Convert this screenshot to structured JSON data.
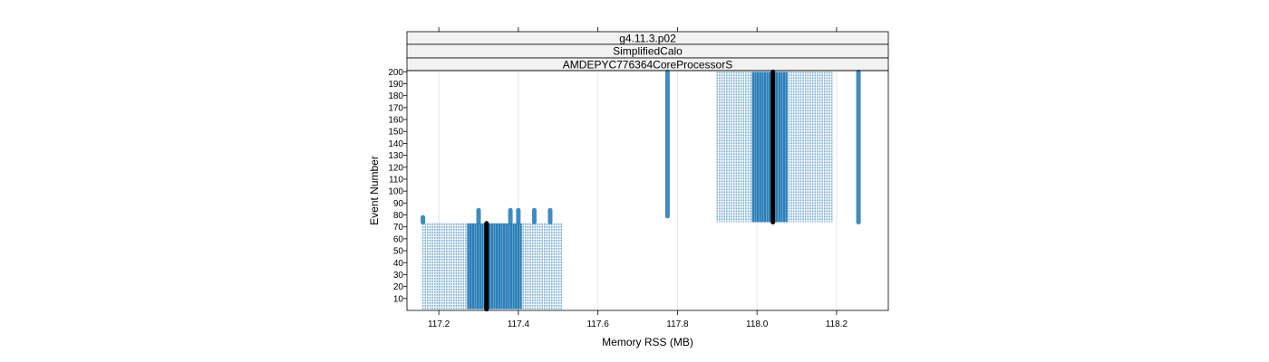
{
  "chart_data": {
    "type": "scatter",
    "panel_strips": [
      "g4.11.3.p02",
      "SimplifiedCalo",
      "AMDEPYC776364CoreProcessorS"
    ],
    "xlabel": "Memory RSS (MB)",
    "ylabel": "Event Number",
    "xlim": [
      117.12,
      118.33
    ],
    "ylim": [
      0,
      201
    ],
    "x_ticks": [
      117.2,
      117.4,
      117.6,
      117.8,
      118.0,
      118.2
    ],
    "x_tick_labels": [
      "117.2",
      "117.4",
      "117.6",
      "117.8",
      "118.0",
      "118.2"
    ],
    "y_ticks": [
      10,
      20,
      30,
      40,
      50,
      60,
      70,
      80,
      90,
      100,
      110,
      120,
      130,
      140,
      150,
      160,
      170,
      180,
      190,
      200
    ],
    "y_tick_labels": [
      "10",
      "20",
      "30",
      "40",
      "50",
      "60",
      "70",
      "80",
      "90",
      "100",
      "110",
      "120",
      "130",
      "140",
      "150",
      "160",
      "170",
      "180",
      "190",
      "200"
    ],
    "grid": true,
    "point_color": "#1f77b4",
    "median_color": "#000000",
    "groups": [
      {
        "events": [
          1,
          73
        ],
        "x_min": 117.16,
        "x_max": 117.51,
        "dense_min": 117.27,
        "dense_max": 117.41,
        "median_x": 117.32,
        "outlier_columns": [
          {
            "x": 117.16,
            "events": [
              74,
              78
            ]
          },
          {
            "x": 117.3,
            "events": [
              74,
              84
            ]
          },
          {
            "x": 117.38,
            "events": [
              74,
              84
            ]
          },
          {
            "x": 117.4,
            "events": [
              74,
              84
            ]
          },
          {
            "x": 117.44,
            "events": [
              74,
              84
            ]
          },
          {
            "x": 117.48,
            "events": [
              74,
              84
            ]
          }
        ]
      },
      {
        "events": [
          74,
          200
        ],
        "x_min": 117.9,
        "x_max": 118.19,
        "dense_min": 117.99,
        "dense_max": 118.08,
        "median_x": 118.04,
        "outlier_columns": [
          {
            "x": 117.775,
            "events": [
              79,
              200
            ]
          },
          {
            "x": 118.255,
            "events": [
              74,
              200
            ]
          }
        ]
      }
    ]
  }
}
